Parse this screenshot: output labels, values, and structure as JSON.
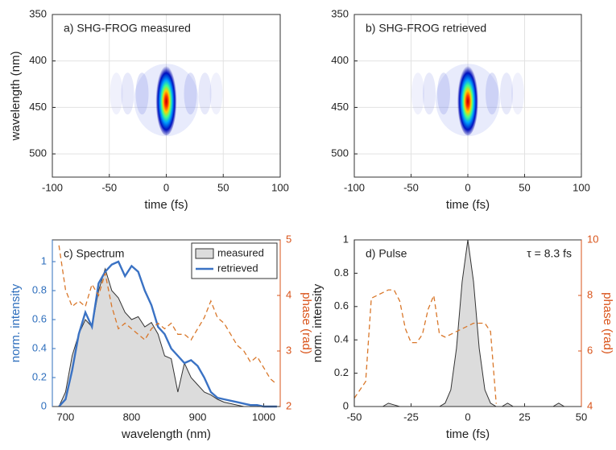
{
  "chart_data": [
    {
      "type": "heatmap",
      "title": "a) SHG-FROG measured",
      "xlabel": "time (fs)",
      "ylabel": "wavelength (nm)",
      "xlim": [
        -100,
        100
      ],
      "xticks": [
        -100,
        -50,
        0,
        50,
        100
      ],
      "ylim": [
        350,
        525
      ],
      "yticks": [
        350,
        400,
        450,
        500
      ],
      "y_reversed": true,
      "grid": true,
      "peak": {
        "x": 0,
        "y": 442
      }
    },
    {
      "type": "heatmap",
      "title": "b) SHG-FROG retrieved",
      "xlabel": "time (fs)",
      "xlim": [
        -100,
        100
      ],
      "xticks": [
        -100,
        -50,
        0,
        50,
        100
      ],
      "ylim": [
        350,
        525
      ],
      "yticks": [
        350,
        400,
        450,
        500
      ],
      "y_reversed": true,
      "grid": true,
      "peak": {
        "x": 0,
        "y": 442
      }
    },
    {
      "type": "line",
      "title": "c) Spectrum",
      "xlabel": "wavelength (nm)",
      "ylabel": "norm. intensity",
      "y2label": "phase (rad)",
      "xlim": [
        680,
        1025
      ],
      "xticks": [
        700,
        800,
        900,
        1000
      ],
      "ylim": [
        0,
        1.15
      ],
      "yticks": [
        0,
        0.2,
        0.4,
        0.6,
        0.8,
        1
      ],
      "y2lim": [
        2,
        5
      ],
      "y2ticks": [
        2,
        3,
        4,
        5
      ],
      "y_axis_color": "#2f6fbd",
      "y2_axis_color": "#d95319",
      "legend": "upper right",
      "x": [
        690,
        700,
        710,
        720,
        730,
        740,
        750,
        760,
        770,
        780,
        790,
        800,
        810,
        820,
        830,
        840,
        850,
        860,
        870,
        880,
        890,
        900,
        910,
        920,
        930,
        940,
        950,
        960,
        970,
        980,
        990,
        1000,
        1010,
        1020
      ],
      "series": [
        {
          "name": "measured",
          "style": "area",
          "color": "#dcdcdc",
          "values": [
            0,
            0.1,
            0.35,
            0.5,
            0.6,
            0.55,
            0.8,
            0.95,
            0.8,
            0.75,
            0.65,
            0.6,
            0.62,
            0.55,
            0.58,
            0.5,
            0.35,
            0.33,
            0.1,
            0.3,
            0.2,
            0.15,
            0.1,
            0.08,
            0.05,
            0.03,
            0.02,
            0.01,
            0,
            0,
            0,
            0,
            0,
            0
          ]
        },
        {
          "name": "retrieved",
          "style": "line",
          "color": "#3a72c4",
          "values": [
            0,
            0.05,
            0.25,
            0.5,
            0.65,
            0.55,
            0.85,
            0.93,
            0.98,
            1.0,
            0.9,
            0.97,
            0.93,
            0.8,
            0.7,
            0.55,
            0.5,
            0.4,
            0.35,
            0.3,
            0.32,
            0.28,
            0.2,
            0.1,
            0.06,
            0.05,
            0.04,
            0.03,
            0.02,
            0.01,
            0.01,
            0,
            0,
            0
          ]
        },
        {
          "style": "dashed",
          "axis": "y2",
          "color": "#d9772a",
          "values": [
            4.9,
            4.1,
            3.8,
            3.9,
            3.8,
            4.2,
            4.0,
            4.4,
            3.8,
            3.4,
            3.5,
            3.4,
            3.3,
            3.2,
            3.4,
            3.5,
            3.4,
            3.5,
            3.3,
            3.3,
            3.2,
            3.4,
            3.6,
            3.9,
            3.6,
            3.5,
            3.3,
            3.1,
            3.0,
            2.8,
            2.9,
            2.7,
            2.5,
            2.4
          ]
        }
      ]
    },
    {
      "type": "line",
      "title": "d) Pulse",
      "annotation": "τ = 8.3 fs",
      "xlabel": "time (fs)",
      "ylabel": "norm. intensity",
      "y2label": "phase (rad)",
      "xlim": [
        -50,
        50
      ],
      "xticks": [
        -50,
        -25,
        0,
        25,
        50
      ],
      "ylim": [
        0,
        1
      ],
      "yticks": [
        0,
        0.2,
        0.4,
        0.6,
        0.8,
        1
      ],
      "y2lim": [
        4,
        10
      ],
      "y2ticks": [
        4,
        6,
        8,
        10
      ],
      "y_axis_color": "#222222",
      "y2_axis_color": "#d95319",
      "x": [
        -50,
        -47.5,
        -45,
        -42.5,
        -40,
        -37.5,
        -35,
        -32.5,
        -30,
        -27.5,
        -25,
        -22.5,
        -20,
        -17.5,
        -15,
        -12.5,
        -10,
        -7.5,
        -5,
        -2.5,
        0,
        2.5,
        5,
        7.5,
        10,
        12.5,
        15,
        17.5,
        20,
        22.5,
        25,
        27.5,
        30,
        32.5,
        35,
        37.5,
        40,
        42.5,
        45,
        47.5,
        50
      ],
      "series": [
        {
          "style": "area",
          "color": "#dcdcdc",
          "values": [
            0,
            0,
            0,
            0,
            0,
            0,
            0.02,
            0.01,
            0,
            0,
            0,
            0,
            0,
            0,
            0,
            0,
            0.02,
            0.1,
            0.35,
            0.75,
            1,
            0.75,
            0.35,
            0.1,
            0.02,
            0,
            0,
            0.02,
            0,
            0,
            0,
            0,
            0,
            0,
            0,
            0,
            0.02,
            0,
            0,
            0,
            0
          ]
        },
        {
          "style": "dashed",
          "axis": "y2",
          "color": "#d9772a",
          "values": [
            4.3,
            4.6,
            4.9,
            7.9,
            8.0,
            8.1,
            8.2,
            8.2,
            7.8,
            6.8,
            6.3,
            6.3,
            6.6,
            7.5,
            8.0,
            6.6,
            6.5,
            6.6,
            6.7,
            6.8,
            6.9,
            7.0,
            7.0,
            7.0,
            6.7,
            4.1,
            null,
            null,
            null,
            null,
            null,
            null,
            null,
            null,
            null,
            null,
            null,
            null,
            null,
            null,
            null
          ]
        }
      ]
    }
  ]
}
